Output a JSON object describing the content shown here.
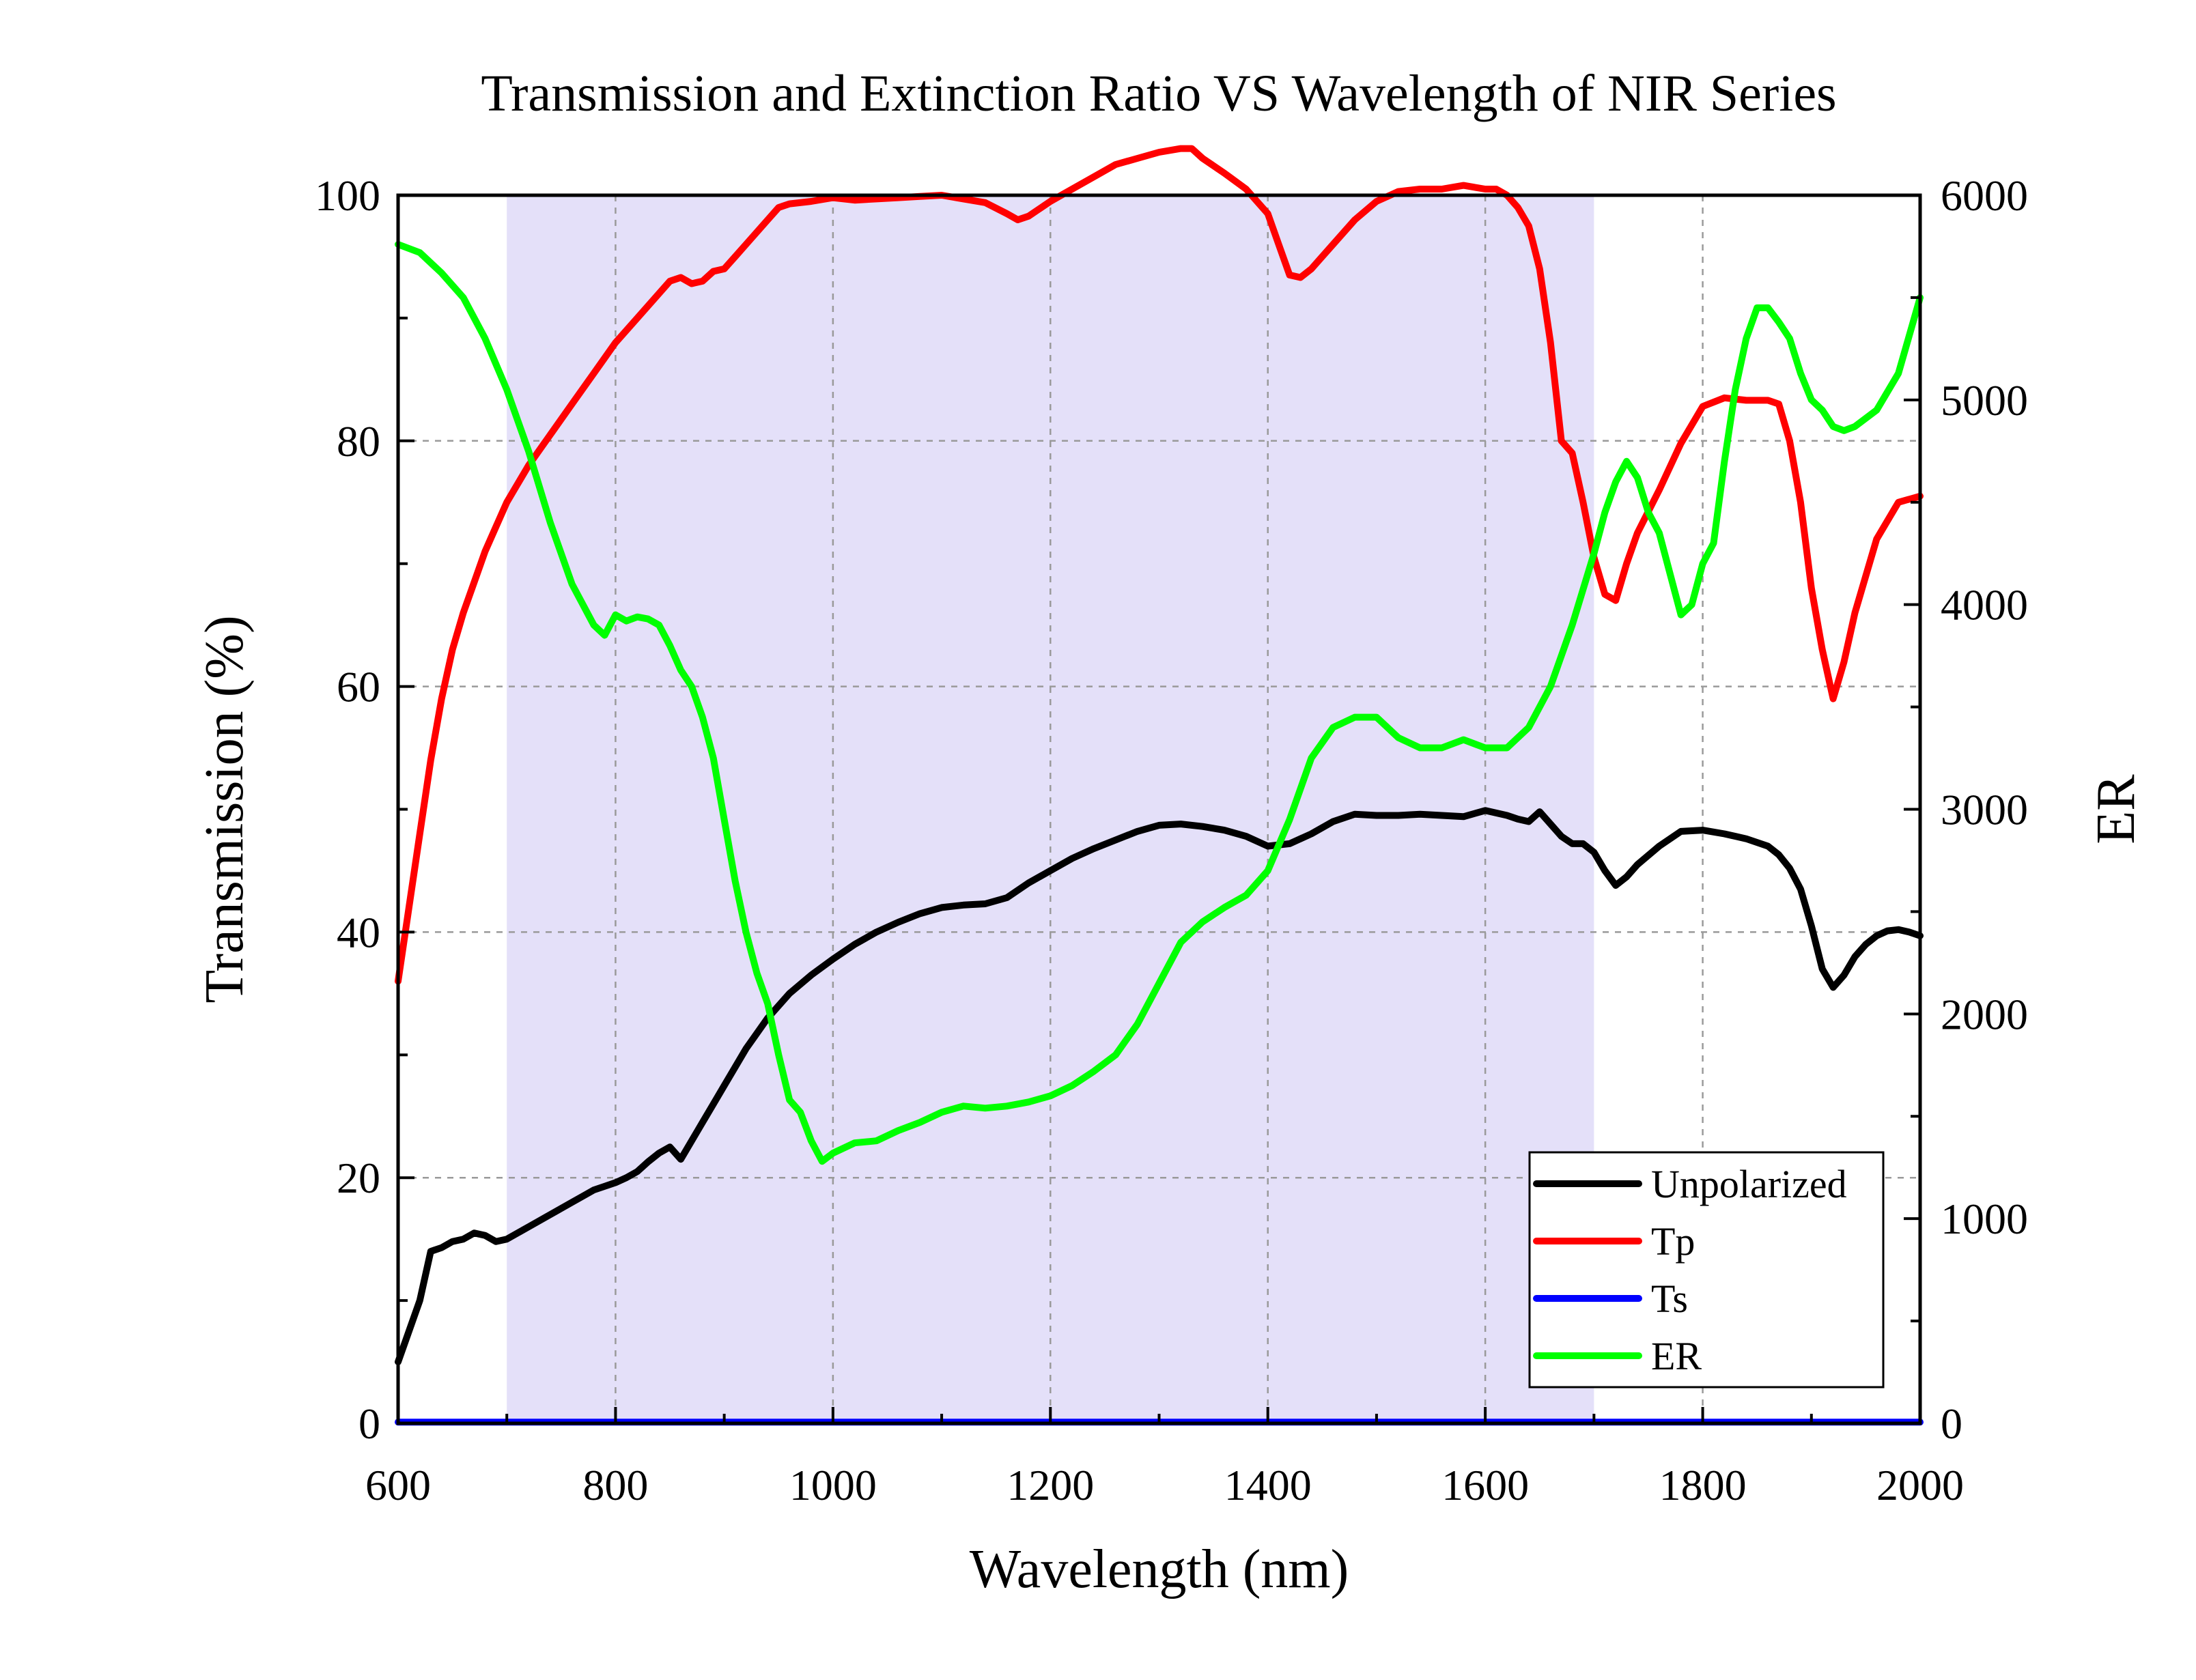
{
  "chart_data": {
    "type": "line",
    "title": "Transmission and Extinction Ratio VS Wavelength of NIR Series",
    "xlabel": "Wavelength (nm)",
    "ylabel": "Transmission (%)",
    "y2label": "ER",
    "xlim": [
      600,
      2000
    ],
    "ylim": [
      0,
      100
    ],
    "y2lim": [
      0,
      6000
    ],
    "xticks": [
      "600",
      "800",
      "1000",
      "1200",
      "1400",
      "1600",
      "1800",
      "2000"
    ],
    "yticks": [
      "0",
      "20",
      "40",
      "60",
      "80",
      "100"
    ],
    "y2ticks": [
      "0",
      "1000",
      "2000",
      "3000",
      "4000",
      "5000",
      "6000"
    ],
    "grid": true,
    "highlight_band": [
      700,
      1700
    ],
    "highlight_color": "#e4e0f9",
    "legend_position": "bottom-right",
    "series": [
      {
        "name": "Unpolarized",
        "axis": "left",
        "color": "#000000",
        "x": [
          600,
          610,
          620,
          630,
          640,
          650,
          660,
          670,
          680,
          690,
          700,
          710,
          720,
          730,
          740,
          750,
          760,
          770,
          780,
          790,
          800,
          810,
          820,
          830,
          840,
          850,
          860,
          870,
          880,
          890,
          900,
          920,
          940,
          960,
          980,
          1000,
          1020,
          1040,
          1060,
          1080,
          1100,
          1120,
          1140,
          1160,
          1180,
          1200,
          1220,
          1240,
          1260,
          1280,
          1300,
          1320,
          1340,
          1360,
          1380,
          1400,
          1420,
          1440,
          1460,
          1480,
          1500,
          1520,
          1540,
          1560,
          1580,
          1600,
          1620,
          1630,
          1640,
          1650,
          1660,
          1670,
          1680,
          1690,
          1700,
          1710,
          1720,
          1730,
          1740,
          1760,
          1780,
          1800,
          1820,
          1840,
          1860,
          1870,
          1880,
          1890,
          1900,
          1910,
          1920,
          1930,
          1940,
          1950,
          1960,
          1970,
          1980,
          1990,
          2000
        ],
        "y": [
          5,
          7.5,
          10,
          14,
          14.3,
          14.8,
          15,
          15.5,
          15.3,
          14.8,
          15,
          15.5,
          16,
          16.5,
          17,
          17.5,
          18,
          18.5,
          19,
          19.3,
          19.6,
          20,
          20.5,
          21.3,
          22,
          22.5,
          21.5,
          23,
          24.5,
          26,
          27.5,
          30.5,
          33,
          35,
          36.5,
          37.8,
          39,
          40,
          40.8,
          41.5,
          42,
          42.2,
          42.3,
          42.8,
          44,
          45,
          46,
          46.8,
          47.5,
          48.2,
          48.7,
          48.8,
          48.6,
          48.3,
          47.8,
          47,
          47.2,
          48,
          49,
          49.6,
          49.5,
          49.5,
          49.6,
          49.5,
          49.4,
          49.9,
          49.5,
          49.2,
          49,
          49.8,
          48.8,
          47.8,
          47.2,
          47.2,
          46.5,
          45,
          43.8,
          44.5,
          45.5,
          47,
          48.2,
          48.3,
          48,
          47.6,
          47,
          46.3,
          45.2,
          43.5,
          40.5,
          37,
          35.5,
          36.5,
          38,
          39,
          39.7,
          40.1,
          40.2,
          40,
          39.7
        ]
      },
      {
        "name": "Tp",
        "axis": "left",
        "color": "#ff0000",
        "x": [
          600,
          610,
          620,
          630,
          640,
          650,
          660,
          670,
          680,
          690,
          700,
          720,
          740,
          760,
          780,
          800,
          820,
          840,
          850,
          860,
          870,
          880,
          890,
          900,
          910,
          920,
          930,
          940,
          950,
          960,
          980,
          1000,
          1020,
          1040,
          1060,
          1080,
          1100,
          1120,
          1140,
          1160,
          1170,
          1180,
          1200,
          1220,
          1240,
          1260,
          1280,
          1300,
          1320,
          1330,
          1340,
          1360,
          1380,
          1400,
          1410,
          1420,
          1430,
          1440,
          1460,
          1480,
          1500,
          1520,
          1540,
          1560,
          1580,
          1600,
          1610,
          1620,
          1630,
          1640,
          1650,
          1660,
          1670,
          1680,
          1690,
          1700,
          1710,
          1720,
          1730,
          1740,
          1760,
          1780,
          1800,
          1820,
          1840,
          1860,
          1870,
          1880,
          1890,
          1900,
          1910,
          1920,
          1930,
          1940,
          1960,
          1980,
          2000
        ],
        "y": [
          36,
          42,
          48,
          54,
          59,
          63,
          66,
          68.5,
          71,
          73,
          75,
          78,
          80.5,
          83,
          85.5,
          88,
          90,
          92,
          93,
          93.3,
          92.8,
          93,
          93.8,
          94,
          95,
          96,
          97,
          98,
          99,
          99.3,
          99.5,
          99.8,
          99.6,
          99.7,
          99.8,
          99.9,
          100,
          99.7,
          99.4,
          98.5,
          98,
          98.3,
          99.5,
          100.5,
          101.5,
          102.5,
          103,
          103.5,
          103.8,
          103.8,
          103,
          101.8,
          100.5,
          98.5,
          96,
          93.5,
          93.3,
          94,
          96,
          98,
          99.5,
          100.3,
          100.5,
          100.5,
          100.8,
          100.5,
          100.5,
          100,
          99,
          97.5,
          94,
          88,
          80,
          79,
          75,
          70.5,
          67.5,
          67,
          70,
          72.5,
          76,
          79.8,
          82.8,
          83.5,
          83.3,
          83.3,
          83,
          80,
          75,
          68,
          63,
          59,
          62,
          66,
          72,
          75,
          75.5
        ],
        "note_values_are_scaled": false
      },
      {
        "name": "Ts",
        "axis": "left",
        "color": "#0000ff",
        "x": [
          600,
          800,
          1000,
          1200,
          1400,
          1600,
          1800,
          2000
        ],
        "y": [
          0.1,
          0.1,
          0.1,
          0.1,
          0.1,
          0.1,
          0.1,
          0.1
        ]
      },
      {
        "name": "ER",
        "axis": "right",
        "color": "#00ff00",
        "x": [
          600,
          620,
          640,
          660,
          680,
          700,
          720,
          740,
          760,
          780,
          790,
          800,
          810,
          820,
          830,
          840,
          850,
          860,
          870,
          880,
          890,
          900,
          910,
          920,
          930,
          940,
          950,
          960,
          970,
          980,
          990,
          1000,
          1020,
          1040,
          1060,
          1080,
          1100,
          1120,
          1140,
          1160,
          1180,
          1200,
          1220,
          1240,
          1260,
          1280,
          1300,
          1320,
          1340,
          1360,
          1380,
          1400,
          1420,
          1440,
          1460,
          1480,
          1500,
          1520,
          1540,
          1560,
          1580,
          1600,
          1620,
          1640,
          1660,
          1680,
          1700,
          1710,
          1720,
          1730,
          1740,
          1750,
          1760,
          1770,
          1780,
          1790,
          1800,
          1810,
          1820,
          1830,
          1840,
          1850,
          1860,
          1870,
          1880,
          1890,
          1900,
          1910,
          1920,
          1930,
          1940,
          1960,
          1980,
          2000
        ],
        "y": [
          5760,
          5720,
          5620,
          5500,
          5300,
          5050,
          4750,
          4400,
          4100,
          3900,
          3850,
          3950,
          3920,
          3940,
          3930,
          3900,
          3800,
          3680,
          3600,
          3450,
          3250,
          2950,
          2650,
          2400,
          2200,
          2050,
          1800,
          1580,
          1520,
          1380,
          1280,
          1320,
          1370,
          1380,
          1430,
          1470,
          1520,
          1550,
          1540,
          1550,
          1570,
          1600,
          1650,
          1720,
          1800,
          1950,
          2150,
          2350,
          2450,
          2520,
          2580,
          2700,
          2950,
          3250,
          3400,
          3450,
          3450,
          3350,
          3300,
          3300,
          3340,
          3300,
          3300,
          3400,
          3600,
          3900,
          4250,
          4450,
          4600,
          4700,
          4620,
          4450,
          4350,
          4150,
          3950,
          4000,
          4200,
          4300,
          4700,
          5050,
          5300,
          5450,
          5450,
          5380,
          5300,
          5130,
          5000,
          4950,
          4870,
          4850,
          4870,
          4950,
          5130,
          5500
        ]
      }
    ]
  }
}
